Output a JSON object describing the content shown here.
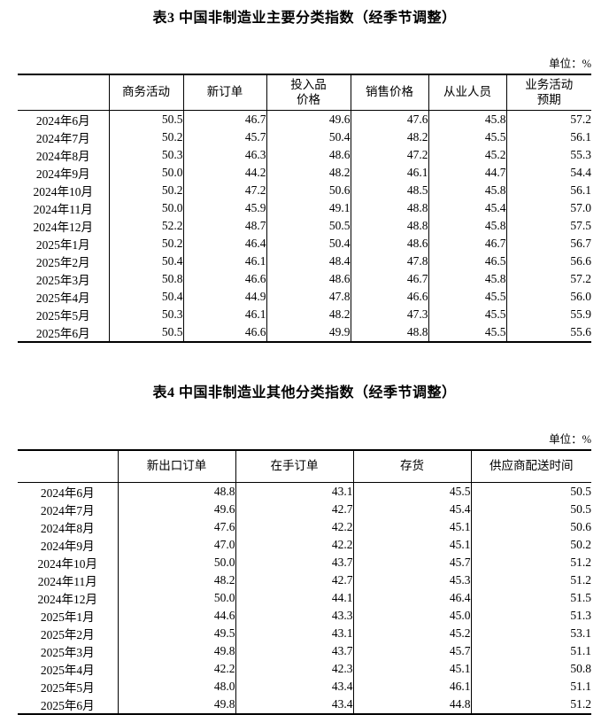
{
  "tables": [
    {
      "title": "表3 中国非制造业主要分类指数（经季节调整）",
      "unit_label": "单位：%",
      "columns": [
        "商务活动",
        "新订单",
        "投入品\n价格",
        "销售价格",
        "从业人员",
        "业务活动\n预期"
      ],
      "rows": [
        {
          "period": "2024年6月",
          "values": [
            "50.5",
            "46.7",
            "49.6",
            "47.6",
            "45.8",
            "57.2"
          ]
        },
        {
          "period": "2024年7月",
          "values": [
            "50.2",
            "45.7",
            "50.4",
            "48.2",
            "45.5",
            "56.1"
          ]
        },
        {
          "period": "2024年8月",
          "values": [
            "50.3",
            "46.3",
            "48.6",
            "47.2",
            "45.2",
            "55.3"
          ]
        },
        {
          "period": "2024年9月",
          "values": [
            "50.0",
            "44.2",
            "48.2",
            "46.1",
            "44.7",
            "54.4"
          ]
        },
        {
          "period": "2024年10月",
          "values": [
            "50.2",
            "47.2",
            "50.6",
            "48.5",
            "45.8",
            "56.1"
          ]
        },
        {
          "period": "2024年11月",
          "values": [
            "50.0",
            "45.9",
            "49.1",
            "48.8",
            "45.4",
            "57.0"
          ]
        },
        {
          "period": "2024年12月",
          "values": [
            "52.2",
            "48.7",
            "50.5",
            "48.8",
            "45.8",
            "57.5"
          ]
        },
        {
          "period": "2025年1月",
          "values": [
            "50.2",
            "46.4",
            "50.4",
            "48.6",
            "46.7",
            "56.7"
          ]
        },
        {
          "period": "2025年2月",
          "values": [
            "50.4",
            "46.1",
            "48.4",
            "47.8",
            "46.5",
            "56.6"
          ]
        },
        {
          "period": "2025年3月",
          "values": [
            "50.8",
            "46.6",
            "48.6",
            "46.7",
            "45.8",
            "57.2"
          ]
        },
        {
          "period": "2025年4月",
          "values": [
            "50.4",
            "44.9",
            "47.8",
            "46.6",
            "45.5",
            "56.0"
          ]
        },
        {
          "period": "2025年5月",
          "values": [
            "50.3",
            "46.1",
            "48.2",
            "47.3",
            "45.5",
            "55.9"
          ]
        },
        {
          "period": "2025年6月",
          "values": [
            "50.5",
            "46.6",
            "49.9",
            "48.8",
            "45.5",
            "55.6"
          ]
        }
      ]
    },
    {
      "title": "表4 中国非制造业其他分类指数（经季节调整）",
      "unit_label": "单位：%",
      "columns": [
        "新出口订单",
        "在手订单",
        "存货",
        "供应商配送时间"
      ],
      "rows": [
        {
          "period": "2024年6月",
          "values": [
            "48.8",
            "43.1",
            "45.5",
            "50.5"
          ]
        },
        {
          "period": "2024年7月",
          "values": [
            "49.6",
            "42.7",
            "45.4",
            "50.5"
          ]
        },
        {
          "period": "2024年8月",
          "values": [
            "47.6",
            "42.2",
            "45.1",
            "50.6"
          ]
        },
        {
          "period": "2024年9月",
          "values": [
            "47.0",
            "42.2",
            "45.1",
            "50.2"
          ]
        },
        {
          "period": "2024年10月",
          "values": [
            "50.0",
            "43.7",
            "45.7",
            "51.2"
          ]
        },
        {
          "period": "2024年11月",
          "values": [
            "48.2",
            "42.7",
            "45.3",
            "51.2"
          ]
        },
        {
          "period": "2024年12月",
          "values": [
            "50.0",
            "44.1",
            "46.4",
            "51.5"
          ]
        },
        {
          "period": "2025年1月",
          "values": [
            "44.6",
            "43.3",
            "45.0",
            "51.3"
          ]
        },
        {
          "period": "2025年2月",
          "values": [
            "49.5",
            "43.1",
            "45.2",
            "53.1"
          ]
        },
        {
          "period": "2025年3月",
          "values": [
            "49.8",
            "43.7",
            "45.7",
            "51.1"
          ]
        },
        {
          "period": "2025年4月",
          "values": [
            "42.2",
            "42.3",
            "45.1",
            "50.8"
          ]
        },
        {
          "period": "2025年5月",
          "values": [
            "48.0",
            "43.4",
            "46.1",
            "51.1"
          ]
        },
        {
          "period": "2025年6月",
          "values": [
            "49.8",
            "43.4",
            "44.8",
            "51.2"
          ]
        }
      ]
    }
  ]
}
